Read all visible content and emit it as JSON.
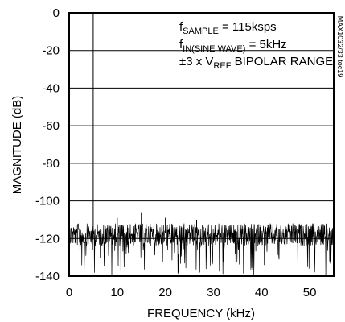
{
  "chart_data": {
    "type": "line",
    "title": "",
    "xlabel": "FREQUENCY (kHz)",
    "ylabel": "MAGNITUDE (dB)",
    "xlim": [
      0,
      55
    ],
    "ylim": [
      -140,
      0
    ],
    "xticks": [
      0,
      10,
      20,
      30,
      40,
      50
    ],
    "yticks": [
      0,
      -20,
      -40,
      -60,
      -80,
      -100,
      -120,
      -140
    ],
    "grid": true,
    "annotations": {
      "line1": {
        "base": "f",
        "sub": "SAMPLE",
        "rest": " = 115ksps"
      },
      "line2": {
        "base": "f",
        "sub": "IN(SINE WAVE)",
        "rest": " = 5kHz"
      },
      "line3": {
        "base": "±3 x V",
        "sub": "REF",
        "rest": "  BIPOLAR RANGE"
      }
    },
    "figure_tag": "MAX1032/33 toc19",
    "series": [
      {
        "fundamental": {
          "x": 5,
          "y": 0
        },
        "noise_floor_db": -117,
        "noise_band_db": [
          -112,
          -124
        ],
        "noise_min_db": -140,
        "spurs": [
          {
            "x": 10,
            "y": -109
          },
          {
            "x": 15,
            "y": -106
          },
          {
            "x": 20,
            "y": -109
          },
          {
            "x": 26.5,
            "y": -110
          }
        ]
      }
    ]
  }
}
